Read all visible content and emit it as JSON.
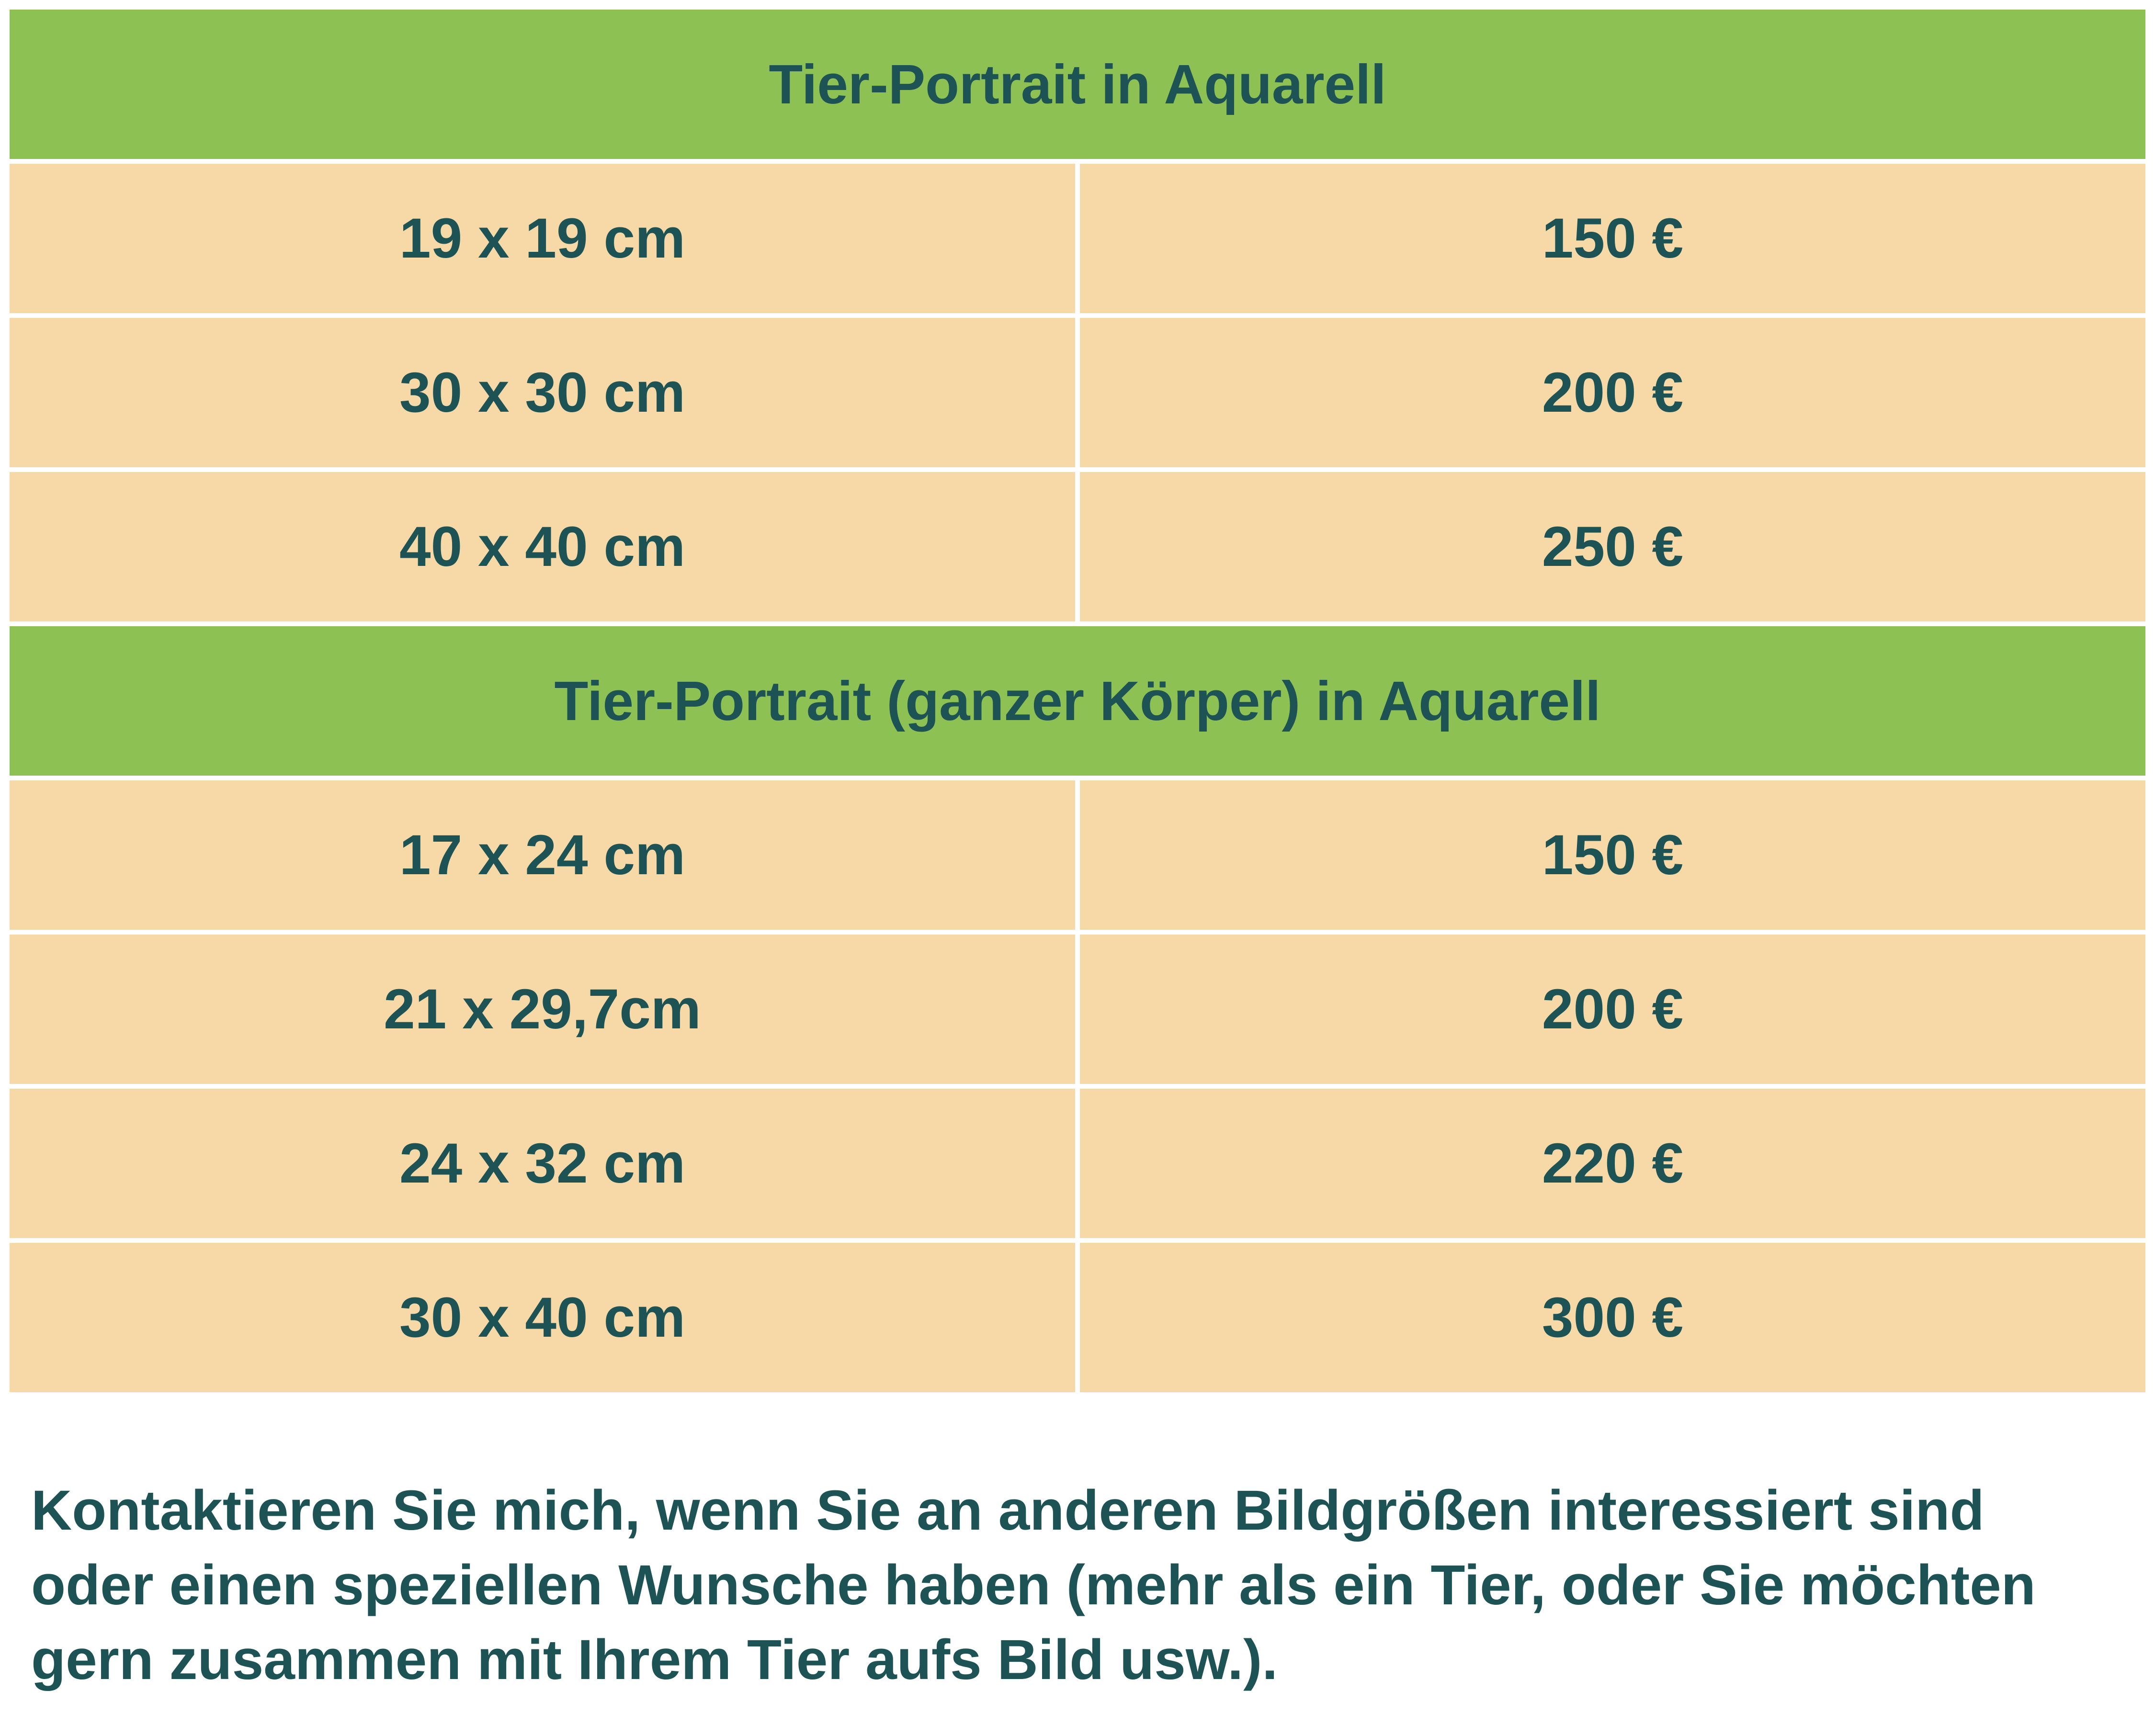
{
  "colors": {
    "header_green": "#8dc154",
    "row_tan": "#f6d9a6",
    "text_teal": "#1d5354",
    "background": "#ffffff"
  },
  "tables": [
    {
      "title": "Tier-Portrait in Aquarell",
      "rows": [
        {
          "size": "19 x 19 cm",
          "price": "150 €"
        },
        {
          "size": "30 x 30 cm",
          "price": "200 €"
        },
        {
          "size": "40 x 40 cm",
          "price": "250 €"
        }
      ]
    },
    {
      "title": "Tier-Portrait (ganzer Körper) in Aquarell",
      "rows": [
        {
          "size": "17 x 24 cm",
          "price": "150 €"
        },
        {
          "size": "21 x 29,7cm",
          "price": "200 €"
        },
        {
          "size": "24 x 32 cm",
          "price": "220 €"
        },
        {
          "size": "30 x 40 cm",
          "price": "300 €"
        }
      ]
    }
  ],
  "footer": {
    "text": "Kontaktieren Sie mich, wenn Sie an anderen Bildgrößen interessiert sind oder einen speziellen Wunsche haben (mehr als ein Tier, oder Sie möchten gern zusammen mit Ihrem Tier aufs Bild usw.)."
  }
}
